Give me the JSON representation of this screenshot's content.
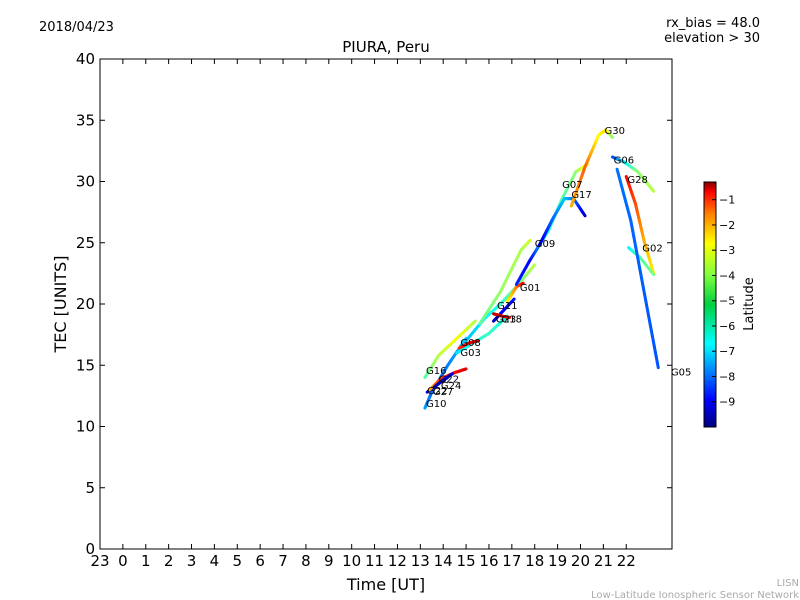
{
  "header": {
    "date": "2018/04/23",
    "rx_bias": "rx_bias = 48.0",
    "elevation": "elevation > 30"
  },
  "footer": {
    "credit_line1": "LISN",
    "credit_line2": "Low-Latitude Ionospheric Sensor Network"
  },
  "chart_data": {
    "type": "scatter",
    "title": "PIURA, Peru",
    "xlabel": "Time [UT]",
    "ylabel": "TEC [UNITS]",
    "xlim": [
      -1,
      24
    ],
    "ylim": [
      0,
      40
    ],
    "x_tick_labels": [
      "23",
      "0",
      "1",
      "2",
      "3",
      "4",
      "5",
      "6",
      "7",
      "8",
      "9",
      "10",
      "11",
      "12",
      "13",
      "14",
      "15",
      "16",
      "17",
      "18",
      "19",
      "20",
      "21",
      "22"
    ],
    "y_ticks": [
      0,
      5,
      10,
      15,
      20,
      25,
      30,
      35,
      40
    ],
    "grid": false,
    "colorbar": {
      "label": "Latitude",
      "range": [
        -10,
        -0.3
      ],
      "ticks": [
        -9,
        -8,
        -7,
        -6,
        -5,
        -4,
        -3,
        -2,
        -1
      ],
      "colormap": [
        "#00007f",
        "#0000ff",
        "#007fff",
        "#00ffff",
        "#7fff7f",
        "#ffff00",
        "#ff7f00",
        "#ff0000",
        "#7f0000"
      ]
    },
    "series": [
      {
        "name": "G10",
        "points": [
          [
            13.2,
            11.5,
            -7.2
          ],
          [
            13.5,
            12.8,
            -7.8
          ],
          [
            14.2,
            15.0,
            -7.6
          ],
          [
            15.0,
            17.2,
            -6.8
          ]
        ]
      },
      {
        "name": "G16",
        "points": [
          [
            13.2,
            14.0,
            -5.6
          ],
          [
            13.8,
            15.8,
            -4.6
          ],
          [
            14.6,
            17.2,
            -4.0
          ],
          [
            15.4,
            18.6,
            -4.6
          ]
        ]
      },
      {
        "name": "G27",
        "points": [
          [
            13.3,
            12.8,
            -9.2
          ],
          [
            13.8,
            13.5,
            -8.7
          ],
          [
            14.2,
            14.0,
            -8.2
          ]
        ]
      },
      {
        "name": "G22",
        "points": [
          [
            13.4,
            13.0,
            -3.4
          ],
          [
            13.9,
            13.9,
            -2.0
          ],
          [
            14.5,
            14.4,
            -1.6
          ],
          [
            15.0,
            14.7,
            -1.2
          ]
        ]
      },
      {
        "name": "G24",
        "points": [
          [
            13.6,
            13.2,
            -9.6
          ],
          [
            14.0,
            13.8,
            -9.3
          ],
          [
            14.4,
            14.3,
            -9.0
          ]
        ]
      },
      {
        "name": "G08",
        "points": [
          [
            14.6,
            16.0,
            -6.6
          ],
          [
            15.2,
            16.7,
            -6.2
          ],
          [
            16.0,
            17.6,
            -5.8
          ],
          [
            16.8,
            19.0,
            -6.3
          ]
        ]
      },
      {
        "name": "G03",
        "points": [
          [
            14.7,
            16.4,
            -2.0
          ],
          [
            15.1,
            16.8,
            -1.5
          ],
          [
            15.5,
            17.0,
            -1.1
          ]
        ]
      },
      {
        "name": "G11",
        "points": [
          [
            15.0,
            17.0,
            -7.0
          ],
          [
            15.8,
            18.8,
            -6.5
          ],
          [
            16.5,
            20.0,
            -6.0
          ],
          [
            17.2,
            21.4,
            -5.3
          ],
          [
            18.0,
            23.2,
            -4.6
          ]
        ]
      },
      {
        "name": "G18",
        "points": [
          [
            16.2,
            18.6,
            -9.4
          ],
          [
            16.6,
            19.4,
            -9.0
          ],
          [
            17.1,
            20.4,
            -8.6
          ]
        ]
      },
      {
        "name": "G23",
        "points": [
          [
            16.2,
            19.2,
            -0.8
          ],
          [
            16.6,
            19.0,
            -1.2
          ],
          [
            16.9,
            18.9,
            -1.5
          ]
        ]
      },
      {
        "name": "G01",
        "points": [
          [
            16.8,
            20.2,
            -4.0
          ],
          [
            17.2,
            21.4,
            -2.8
          ],
          [
            17.5,
            21.7,
            -1.5
          ]
        ]
      },
      {
        "name": "G09",
        "points": [
          [
            15.6,
            18.4,
            -5.4
          ],
          [
            16.5,
            21.0,
            -4.9
          ],
          [
            17.4,
            24.4,
            -4.7
          ],
          [
            17.8,
            25.2,
            -4.4
          ]
        ]
      },
      {
        "name": "G07",
        "points": [
          [
            17.2,
            21.6,
            -8.4
          ],
          [
            17.8,
            23.6,
            -8.8
          ],
          [
            18.6,
            26.0,
            -6.2
          ],
          [
            19.2,
            28.6,
            -5.6
          ],
          [
            19.8,
            30.8,
            -5.0
          ],
          [
            20.3,
            31.4,
            -3.8
          ]
        ]
      },
      {
        "name": "G17",
        "points": [
          [
            18.2,
            24.8,
            -9.2
          ],
          [
            18.8,
            27.0,
            -7.8
          ],
          [
            19.3,
            28.6,
            -6.9
          ],
          [
            19.7,
            28.6,
            -7.6
          ],
          [
            20.2,
            27.2,
            -9.3
          ]
        ]
      },
      {
        "name": "G30",
        "points": [
          [
            19.6,
            28.0,
            -3.2
          ],
          [
            20.2,
            31.2,
            -2.4
          ],
          [
            20.8,
            33.8,
            -4.0
          ],
          [
            21.1,
            34.2,
            -3.6
          ],
          [
            21.4,
            33.6,
            -5.0
          ]
        ]
      },
      {
        "name": "G06",
        "points": [
          [
            21.4,
            32.0,
            -8.2
          ],
          [
            21.9,
            31.6,
            -6.6
          ],
          [
            22.5,
            30.8,
            -5.0
          ],
          [
            23.2,
            29.2,
            -4.6
          ]
        ]
      },
      {
        "name": "G28",
        "points": [
          [
            22.0,
            30.4,
            -1.5
          ],
          [
            22.4,
            28.2,
            -2.2
          ],
          [
            22.8,
            25.0,
            -3.2
          ],
          [
            23.2,
            22.5,
            -3.8
          ]
        ]
      },
      {
        "name": "G02",
        "points": [
          [
            22.1,
            24.6,
            -6.4
          ],
          [
            22.6,
            23.8,
            -5.6
          ],
          [
            23.2,
            22.4,
            -5.2
          ]
        ]
      },
      {
        "name": "G05",
        "points": [
          [
            21.6,
            31.0,
            -7.7
          ],
          [
            22.2,
            26.8,
            -7.8
          ],
          [
            22.8,
            20.8,
            -7.9
          ],
          [
            23.4,
            14.8,
            -8.0
          ]
        ]
      }
    ],
    "labels": [
      {
        "text": "G10",
        "x": 13.25,
        "y": 11.9
      },
      {
        "text": "G16",
        "x": 13.25,
        "y": 14.6
      },
      {
        "text": "G22",
        "x": 13.3,
        "y": 13.0
      },
      {
        "text": "G27",
        "x": 13.55,
        "y": 12.9
      },
      {
        "text": "G24",
        "x": 13.9,
        "y": 13.4
      },
      {
        "text": "G22",
        "x": 13.8,
        "y": 13.9
      },
      {
        "text": "G08",
        "x": 14.75,
        "y": 16.9
      },
      {
        "text": "G03",
        "x": 14.75,
        "y": 16.1
      },
      {
        "text": "G11",
        "x": 16.35,
        "y": 19.9
      },
      {
        "text": "G18",
        "x": 16.55,
        "y": 18.8
      },
      {
        "text": "G23",
        "x": 16.3,
        "y": 18.8
      },
      {
        "text": "G01",
        "x": 17.35,
        "y": 21.4
      },
      {
        "text": "G09",
        "x": 18.0,
        "y": 25.0
      },
      {
        "text": "G07",
        "x": 19.2,
        "y": 29.8
      },
      {
        "text": "G17",
        "x": 19.6,
        "y": 29.0
      },
      {
        "text": "G30",
        "x": 21.05,
        "y": 34.2
      },
      {
        "text": "G06",
        "x": 21.45,
        "y": 31.8
      },
      {
        "text": "G28",
        "x": 22.05,
        "y": 30.2
      },
      {
        "text": "G02",
        "x": 22.7,
        "y": 24.6
      },
      {
        "text": "G05",
        "x": 23.95,
        "y": 14.5
      }
    ]
  }
}
